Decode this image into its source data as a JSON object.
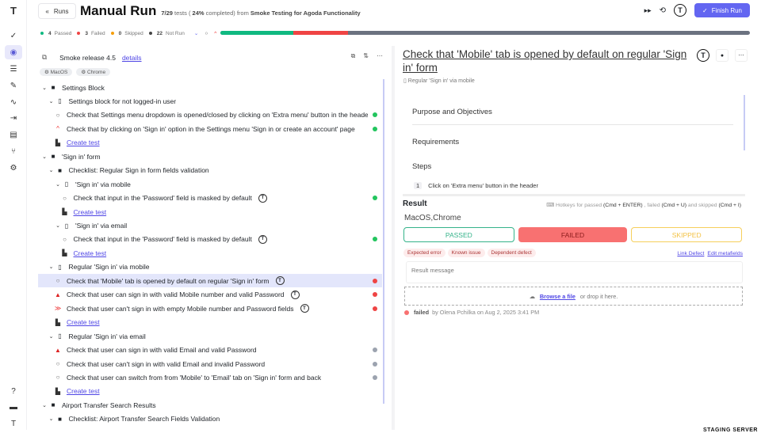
{
  "colors": {
    "accent": "#6366f1",
    "passed": "#10b981",
    "failed": "#ef4444",
    "skipped": "#f59e0b",
    "not_run": "#6b7280"
  },
  "sidebar": {
    "logo": "T",
    "items": [
      {
        "icon": "check-icon",
        "glyph": "✓"
      },
      {
        "icon": "play-circle-icon",
        "glyph": "◉",
        "active": true
      },
      {
        "icon": "checklist-icon",
        "glyph": "☰"
      },
      {
        "icon": "pen-icon",
        "glyph": "✎"
      },
      {
        "icon": "activity-icon",
        "glyph": "∿"
      },
      {
        "icon": "import-icon",
        "glyph": "⇥"
      },
      {
        "icon": "chart-icon",
        "glyph": "▤"
      },
      {
        "icon": "branch-icon",
        "glyph": "⑂"
      },
      {
        "icon": "gear-icon",
        "glyph": "⚙"
      }
    ],
    "bottom": [
      {
        "icon": "help-icon",
        "glyph": "?"
      },
      {
        "icon": "folder-icon",
        "glyph": "▬"
      },
      {
        "icon": "testomat-icon",
        "glyph": "T"
      }
    ]
  },
  "header": {
    "back_label": "Runs",
    "title": "Manual Run",
    "progress_count": "7/29",
    "progress_text_a": " tests ( ",
    "progress_percent": "24%",
    "progress_text_b": " completed) from ",
    "project": "Smoke Testing for Agoda Functionality",
    "finish_label": "Finish Run"
  },
  "stats": {
    "passed": "4",
    "passed_label": "Passed",
    "failed": "3",
    "failed_label": "Failed",
    "skipped": "0",
    "skipped_label": "Skipped",
    "not_run": "22",
    "not_run_label": "Not Run",
    "progress": {
      "passed": 4,
      "failed": 3,
      "skipped": 0,
      "not_run": 22,
      "total": 29
    }
  },
  "run": {
    "name": "Smoke release 4.5",
    "details_label": "details",
    "tags": [
      "MacOS",
      "Chrome"
    ]
  },
  "tree": [
    {
      "type": "folder",
      "level": 0,
      "label": "Settings Block"
    },
    {
      "type": "suite",
      "level": 1,
      "label": "Settings block for not logged-in user"
    },
    {
      "type": "test",
      "level": 1,
      "priority": "normal",
      "label": "Check that Settings menu dropdown is opened/closed by clicking on 'Extra menu' button in the header",
      "status": "passed"
    },
    {
      "type": "test",
      "level": 1,
      "priority": "high",
      "label": "Check that by clicking on 'Sign in' option in the Settings menu 'Sign in or create an account' page",
      "status": "passed"
    },
    {
      "type": "create",
      "level": 1,
      "label": "Create test"
    },
    {
      "type": "folder",
      "level": 0,
      "label": "'Sign in' form"
    },
    {
      "type": "folder",
      "level": 1,
      "label": "Checklist: Regular Sign in form fields validation"
    },
    {
      "type": "suite",
      "level": 2,
      "label": "'Sign in' via mobile"
    },
    {
      "type": "test",
      "level": 2,
      "priority": "normal",
      "label": "Check that input in the 'Password' field is masked by default",
      "status": "passed",
      "automated": true
    },
    {
      "type": "create",
      "level": 2,
      "label": "Create test"
    },
    {
      "type": "suite",
      "level": 2,
      "label": "'Sign in' via email"
    },
    {
      "type": "test",
      "level": 2,
      "priority": "normal",
      "label": "Check that input in the 'Password' field is masked by default",
      "status": "passed",
      "automated": true
    },
    {
      "type": "create",
      "level": 2,
      "label": "Create test"
    },
    {
      "type": "suite",
      "level": 1,
      "label": "Regular 'Sign in' via mobile"
    },
    {
      "type": "test",
      "level": 1,
      "priority": "normal",
      "label": "Check that 'Mobile' tab is opened by default on regular 'Sign in' form",
      "status": "failed",
      "automated": true,
      "selected": true
    },
    {
      "type": "test",
      "level": 1,
      "priority": "critical",
      "label": "Check that user can sign in with valid Mobile number and valid Password",
      "status": "failed",
      "automated": true
    },
    {
      "type": "test",
      "level": 1,
      "priority": "important",
      "label": "Check that user can't sign in with empty Mobile number and Password fields",
      "status": "failed",
      "automated": true
    },
    {
      "type": "create",
      "level": 1,
      "label": "Create test"
    },
    {
      "type": "suite",
      "level": 1,
      "label": "Regular 'Sign in' via email"
    },
    {
      "type": "test",
      "level": 1,
      "priority": "critical",
      "label": "Check that user can sign in with valid Email and valid Password",
      "status": "not_run"
    },
    {
      "type": "test",
      "level": 1,
      "priority": "normal",
      "label": "Check that user can't sign in with valid Email and invalid Password",
      "status": "not_run"
    },
    {
      "type": "test",
      "level": 1,
      "priority": "normal",
      "label": "Check that user can switch from from 'Mobile' to 'Email' tab on 'Sign in' form and back",
      "status": "not_run"
    },
    {
      "type": "create",
      "level": 1,
      "label": "Create test"
    },
    {
      "type": "folder",
      "level": 0,
      "label": "Airport Transfer Search Results"
    },
    {
      "type": "folder",
      "level": 1,
      "label": "Checklist: Airport Transfer Search Fields Validation"
    }
  ],
  "case": {
    "title": "Check that 'Mobile' tab is opened by default on regular 'Sign in' form",
    "suite": "Regular 'Sign in' via mobile",
    "purpose": "Purpose and Objectives",
    "requirements": "Requirements",
    "steps_label": "Steps",
    "steps": [
      {
        "num": "1",
        "text": "Click on 'Extra menu' button in the header"
      }
    ]
  },
  "result": {
    "label": "Result",
    "hot_a": "Hotkeys for passed ",
    "hot_pk": "(Cmd + ENTER)",
    "hot_b": " , failed ",
    "hot_fk": "(Cmd + U)",
    "hot_c": " and skipped ",
    "hot_sk": "(Cmd + I)",
    "env": "MacOS,Chrome",
    "passed": "PASSED",
    "failed": "FAILED",
    "skipped": "SKIPPED",
    "chips": [
      "Expected error",
      "Known issue",
      "Dependent defect"
    ],
    "link_defect": "Link Defect",
    "edit_meta": "Edit metafields",
    "message_placeholder": "Result message",
    "browse": "Browse a file",
    "drop": "or drop it here.",
    "status_word": "failed",
    "by_text": "by Olena Pchilka on Aug 2, 2025 3:41 PM"
  },
  "footer": {
    "staging": "STAGING SERVER"
  }
}
